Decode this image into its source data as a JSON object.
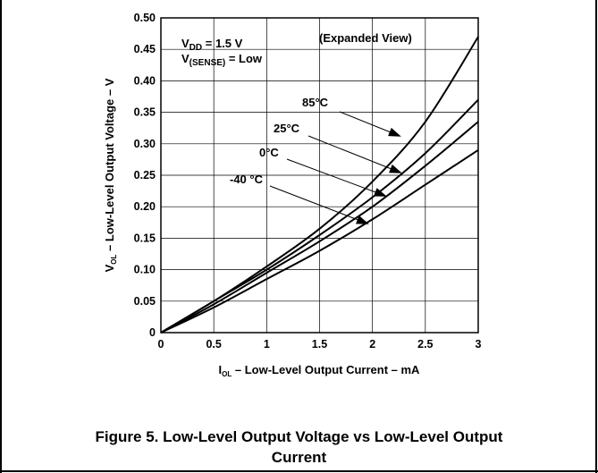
{
  "chart_data": {
    "type": "line",
    "title": "",
    "xlabel": {
      "main": "I",
      "sub": "OL",
      "rest": " – Low-Level Output Current – mA"
    },
    "ylabel": {
      "main": "V",
      "sub": "OL",
      "rest": " – Low-Level Output Voltage – V"
    },
    "xlim": [
      0,
      3
    ],
    "ylim": [
      0,
      0.5
    ],
    "x_ticks": [
      "0",
      "0.5",
      "1",
      "1.5",
      "2",
      "2.5",
      "3"
    ],
    "y_ticks": [
      "0",
      "0.05",
      "0.10",
      "0.15",
      "0.20",
      "0.25",
      "0.30",
      "0.35",
      "0.40",
      "0.45",
      "0.50"
    ],
    "grid": true,
    "annotations": {
      "vdd": {
        "main": "V",
        "sub": "DD",
        "rest": " = 1.5 V"
      },
      "vsense": {
        "main": "V",
        "sub": "(SENSE)",
        "rest": " = Low"
      },
      "expanded": "(Expanded View)"
    },
    "x": [
      0,
      0.5,
      1,
      1.5,
      2,
      2.5,
      3
    ],
    "series": [
      {
        "name": "85°C",
        "values": [
          0,
          0.05,
          0.105,
          0.165,
          0.24,
          0.335,
          0.47
        ]
      },
      {
        "name": "25°C",
        "values": [
          0,
          0.05,
          0.1,
          0.155,
          0.215,
          0.285,
          0.37
        ]
      },
      {
        "name": "0°C",
        "values": [
          0,
          0.045,
          0.095,
          0.145,
          0.2,
          0.265,
          0.335
        ]
      },
      {
        "name": "-40 °C",
        "values": [
          0,
          0.04,
          0.085,
          0.13,
          0.18,
          0.235,
          0.29
        ]
      }
    ]
  },
  "caption": {
    "line1": "Figure 5.  Low-Level Output Voltage vs Low-Level Output",
    "line2": "Current"
  }
}
